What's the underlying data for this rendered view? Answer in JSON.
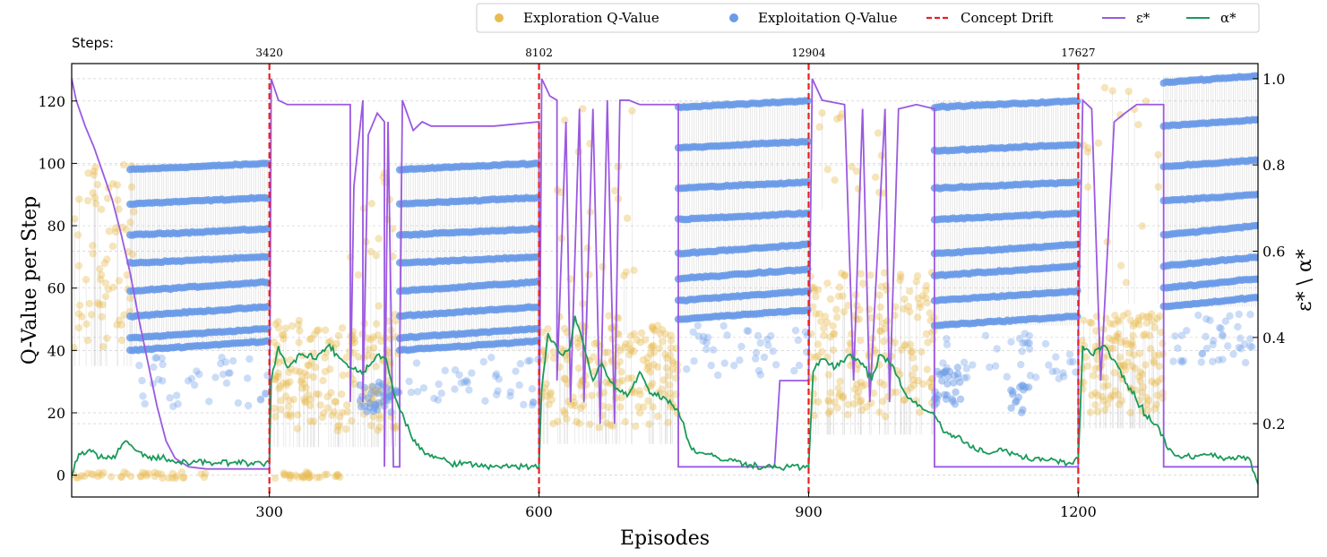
{
  "chart_data": {
    "type": "line",
    "xlabel": "Episodes",
    "ylabel": "Q-Value per Step",
    "y2label": "ε* \\ α*",
    "steps_label": "Steps:",
    "xlim": [
      80,
      1400
    ],
    "ylim": [
      -7,
      132
    ],
    "y2lim": [
      0.03,
      1.035
    ],
    "x_ticks": [
      300,
      600,
      900,
      1200
    ],
    "y_ticks": [
      0,
      20,
      40,
      60,
      80,
      100,
      120
    ],
    "y2_ticks": [
      0.2,
      0.4,
      0.6,
      0.8,
      1.0
    ],
    "drift_episodes": [
      300,
      600,
      900,
      1200
    ],
    "step_counts": [
      "3420",
      "8102",
      "12904",
      "17627"
    ],
    "legend": [
      {
        "label": "Exploration Q-Value",
        "kind": "dot",
        "color": "#e8bc52"
      },
      {
        "label": "Exploitation Q-Value",
        "kind": "dot",
        "color": "#6b9be8"
      },
      {
        "label": "Concept Drift",
        "kind": "dash",
        "color": "#e82020"
      },
      {
        "label": "ε*",
        "kind": "line",
        "color": "#9b59e0"
      },
      {
        "label": "α*",
        "kind": "line",
        "color": "#1a9a5a"
      }
    ],
    "colors": {
      "exploration": "#e8bc52",
      "exploitation": "#6b9be8",
      "drift": "#e82020",
      "epsilon": "#9b59e0",
      "alpha": "#1a9a5a",
      "grid": "#d0d0d0",
      "stems": "#b8b8b8"
    },
    "exploitation_bands": [
      {
        "x_start": 145,
        "x_end": 300,
        "levels": [
          100,
          89,
          79,
          70,
          62,
          54,
          47,
          43
        ]
      },
      {
        "x_start": 445,
        "x_end": 600,
        "levels": [
          100,
          89,
          79,
          70,
          62,
          54,
          47,
          43
        ]
      },
      {
        "x_start": 755,
        "x_end": 900,
        "levels": [
          120,
          107,
          94,
          84,
          74,
          66,
          59,
          53
        ]
      },
      {
        "x_start": 1040,
        "x_end": 1200,
        "levels": [
          120,
          106,
          94,
          84,
          74,
          67,
          59,
          51
        ]
      },
      {
        "x_start": 1295,
        "x_end": 1400,
        "levels": [
          128,
          114,
          101,
          90,
          80,
          70,
          63,
          57
        ]
      }
    ],
    "epsilon_series": {
      "name": "ε*",
      "points": [
        [
          80,
          1.0
        ],
        [
          85,
          0.95
        ],
        [
          95,
          0.89
        ],
        [
          105,
          0.84
        ],
        [
          115,
          0.78
        ],
        [
          125,
          0.72
        ],
        [
          135,
          0.64
        ],
        [
          145,
          0.55
        ],
        [
          155,
          0.44
        ],
        [
          165,
          0.34
        ],
        [
          175,
          0.24
        ],
        [
          185,
          0.16
        ],
        [
          195,
          0.12
        ],
        [
          210,
          0.1
        ],
        [
          230,
          0.095
        ],
        [
          300,
          0.095
        ],
        [
          300,
          0.1
        ],
        [
          302,
          1.0
        ],
        [
          310,
          0.95
        ],
        [
          320,
          0.94
        ],
        [
          390,
          0.94
        ],
        [
          390,
          0.25
        ],
        [
          394,
          0.75
        ],
        [
          404,
          0.95
        ],
        [
          404,
          0.25
        ],
        [
          410,
          0.87
        ],
        [
          420,
          0.92
        ],
        [
          428,
          0.9
        ],
        [
          428,
          0.1
        ],
        [
          432,
          0.9
        ],
        [
          438,
          0.1
        ],
        [
          445,
          0.1
        ],
        [
          445,
          0.36
        ],
        [
          448,
          0.95
        ],
        [
          460,
          0.88
        ],
        [
          465,
          0.89
        ],
        [
          470,
          0.9
        ],
        [
          480,
          0.89
        ],
        [
          550,
          0.89
        ],
        [
          600,
          0.9
        ],
        [
          600,
          0.1
        ],
        [
          603,
          1.0
        ],
        [
          612,
          0.96
        ],
        [
          620,
          0.95
        ],
        [
          620,
          0.3
        ],
        [
          630,
          0.9
        ],
        [
          635,
          0.25
        ],
        [
          645,
          0.93
        ],
        [
          650,
          0.25
        ],
        [
          660,
          0.93
        ],
        [
          668,
          0.2
        ],
        [
          676,
          0.95
        ],
        [
          684,
          0.2
        ],
        [
          690,
          0.95
        ],
        [
          700,
          0.95
        ],
        [
          712,
          0.94
        ],
        [
          755,
          0.94
        ],
        [
          755,
          0.1
        ],
        [
          862,
          0.1
        ],
        [
          868,
          0.3
        ],
        [
          900,
          0.3
        ],
        [
          904,
          1.0
        ],
        [
          915,
          0.95
        ],
        [
          940,
          0.94
        ],
        [
          950,
          0.3
        ],
        [
          960,
          0.93
        ],
        [
          968,
          0.25
        ],
        [
          985,
          0.93
        ],
        [
          990,
          0.25
        ],
        [
          1000,
          0.93
        ],
        [
          1020,
          0.94
        ],
        [
          1040,
          0.93
        ],
        [
          1040,
          0.1
        ],
        [
          1200,
          0.1
        ],
        [
          1200,
          0.4
        ],
        [
          1205,
          0.95
        ],
        [
          1215,
          0.93
        ],
        [
          1225,
          0.3
        ],
        [
          1240,
          0.9
        ],
        [
          1252,
          0.92
        ],
        [
          1265,
          0.94
        ],
        [
          1295,
          0.94
        ],
        [
          1295,
          0.1
        ],
        [
          1400,
          0.1
        ]
      ]
    },
    "alpha_series": {
      "name": "α*",
      "points": [
        [
          80,
          0.08
        ],
        [
          88,
          0.13
        ],
        [
          100,
          0.14
        ],
        [
          115,
          0.12
        ],
        [
          130,
          0.13
        ],
        [
          140,
          0.16
        ],
        [
          150,
          0.14
        ],
        [
          165,
          0.12
        ],
        [
          180,
          0.12
        ],
        [
          200,
          0.11
        ],
        [
          230,
          0.11
        ],
        [
          260,
          0.11
        ],
        [
          300,
          0.11
        ],
        [
          302,
          0.3
        ],
        [
          310,
          0.38
        ],
        [
          320,
          0.33
        ],
        [
          335,
          0.36
        ],
        [
          350,
          0.35
        ],
        [
          365,
          0.38
        ],
        [
          380,
          0.35
        ],
        [
          390,
          0.33
        ],
        [
          405,
          0.32
        ],
        [
          420,
          0.36
        ],
        [
          430,
          0.35
        ],
        [
          440,
          0.26
        ],
        [
          460,
          0.16
        ],
        [
          475,
          0.13
        ],
        [
          500,
          0.11
        ],
        [
          550,
          0.1
        ],
        [
          600,
          0.1
        ],
        [
          603,
          0.28
        ],
        [
          610,
          0.41
        ],
        [
          625,
          0.36
        ],
        [
          635,
          0.38
        ],
        [
          640,
          0.45
        ],
        [
          650,
          0.38
        ],
        [
          660,
          0.3
        ],
        [
          670,
          0.34
        ],
        [
          685,
          0.28
        ],
        [
          700,
          0.27
        ],
        [
          712,
          0.32
        ],
        [
          725,
          0.27
        ],
        [
          740,
          0.26
        ],
        [
          755,
          0.23
        ],
        [
          770,
          0.14
        ],
        [
          800,
          0.12
        ],
        [
          850,
          0.1
        ],
        [
          880,
          0.1
        ],
        [
          900,
          0.1
        ],
        [
          905,
          0.32
        ],
        [
          915,
          0.35
        ],
        [
          930,
          0.33
        ],
        [
          945,
          0.36
        ],
        [
          960,
          0.34
        ],
        [
          970,
          0.3
        ],
        [
          980,
          0.36
        ],
        [
          995,
          0.33
        ],
        [
          1010,
          0.26
        ],
        [
          1025,
          0.24
        ],
        [
          1040,
          0.22
        ],
        [
          1050,
          0.18
        ],
        [
          1065,
          0.17
        ],
        [
          1085,
          0.14
        ],
        [
          1100,
          0.13
        ],
        [
          1120,
          0.14
        ],
        [
          1140,
          0.12
        ],
        [
          1160,
          0.12
        ],
        [
          1190,
          0.11
        ],
        [
          1200,
          0.12
        ],
        [
          1205,
          0.38
        ],
        [
          1215,
          0.36
        ],
        [
          1230,
          0.38
        ],
        [
          1245,
          0.33
        ],
        [
          1260,
          0.27
        ],
        [
          1275,
          0.22
        ],
        [
          1290,
          0.19
        ],
        [
          1300,
          0.14
        ],
        [
          1315,
          0.12
        ],
        [
          1340,
          0.13
        ],
        [
          1360,
          0.12
        ],
        [
          1390,
          0.12
        ],
        [
          1400,
          0.06
        ]
      ]
    }
  }
}
